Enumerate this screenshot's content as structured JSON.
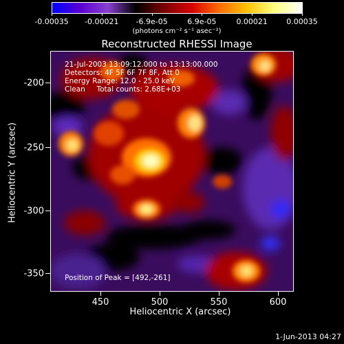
{
  "colorbar": {
    "units": "(photons cm⁻² s⁻¹ asec⁻²)",
    "ticks": [
      "-0.00035",
      "-0.00021",
      "-6.9e-05",
      "6.9e-05",
      "0.00021",
      "0.00035"
    ],
    "gradient": [
      "#0000ff",
      "#5a00d0",
      "#8a40d0",
      "#000000",
      "#7a0000",
      "#d40000",
      "#ff6a00",
      "#ffc000",
      "#ffff80",
      "#ffffff"
    ]
  },
  "title": "Reconstructed RHESSI Image",
  "info": {
    "time": "21-Jul-2003 13:09:12.000 to 13:13:00.000",
    "detectors": "Detectors: 4F 5F 6F 7F 8F, Att 0",
    "energy": "Energy Range: 12.0 - 25.0 keV",
    "clean": "Clean     Total counts: 2.68E+03"
  },
  "peak": "Position of Peak = [492,-261]",
  "axes": {
    "xlabel": "Heliocentric X (arcsec)",
    "ylabel": "Heliocentric Y (arcsec)",
    "xticks": [
      "450",
      "500",
      "550",
      "600"
    ],
    "yticks": [
      "-200",
      "-250",
      "-300",
      "-350"
    ]
  },
  "stamp": "1-Jun-2013 04:27"
}
